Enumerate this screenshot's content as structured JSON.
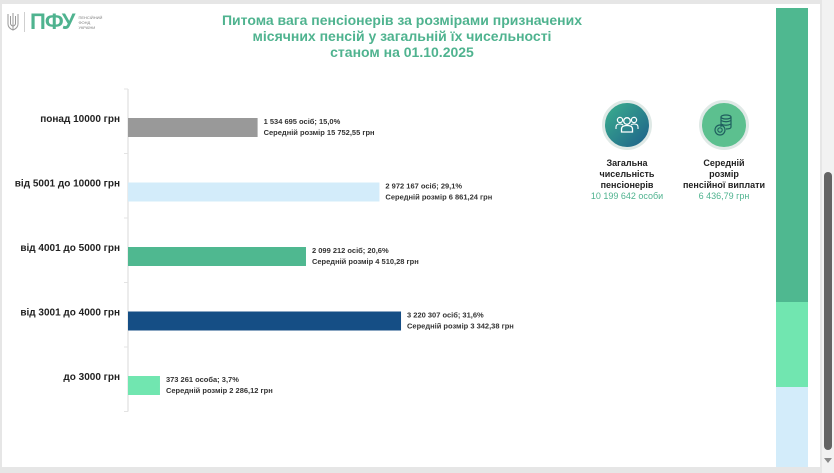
{
  "logo": {
    "text": "ПФУ",
    "subtitle_lines": [
      "Пенсійний",
      "фонд",
      "України"
    ]
  },
  "title_lines": [
    "Питома вага пенсіонерів за розмірами призначених",
    "місячних пенсій у загальній їх чисельності",
    "станом на 01.10.2025"
  ],
  "chart_data": {
    "type": "bar",
    "orientation": "horizontal",
    "title": "Питома вага пенсіонерів за розмірами призначених місячних пенсій у загальній їх чисельності станом на 01.10.2025",
    "xlabel": "",
    "ylabel": "",
    "xlim": [
      0,
      35
    ],
    "grid": false,
    "categories": [
      "понад 10000 грн",
      "від 5001 до 10000 грн",
      "від 4001 до 5000 грн",
      "від 3001 до 4000 грн",
      "до 3000 грн"
    ],
    "values": [
      15.0,
      29.1,
      20.6,
      31.6,
      3.7
    ],
    "unit": "%",
    "colors": [
      "#999999",
      "#d3ecfa",
      "#4fb890",
      "#154e85",
      "#71e6b0"
    ],
    "data_labels": [
      [
        "1 534 695 осіб;  15,0%",
        "Середній розмір 15 752,55 грн"
      ],
      [
        "2 972 167 осіб; 29,1%",
        "Середній розмір 6 861,24 грн"
      ],
      [
        "2 099 212 осіб; 20,6%",
        "Середній розмір 4 510,28 грн"
      ],
      [
        "3 220 307 осіб; 31,6%",
        "Середній розмір 3 342,38 грн"
      ],
      [
        "373 261 особа; 3,7%",
        "Середній розмір 2 286,12 грн"
      ]
    ]
  },
  "stats": [
    {
      "icon": "people-icon",
      "label_lines": [
        "Загальна",
        "чисельність",
        "пенсіонерів"
      ],
      "value": "10 199 642 особи",
      "icon_color": "#2a8a8a"
    },
    {
      "icon": "coins-icon",
      "label_lines": [
        "Середній",
        "розмір",
        "пенсійної виплати"
      ],
      "value": "6 436,79 грн",
      "icon_color": "#5cc08f"
    }
  ],
  "side_bar": {
    "segments": [
      {
        "fraction": 0.64,
        "color": "#4fb890"
      },
      {
        "fraction": 0.185,
        "color": "#71e6b0"
      },
      {
        "fraction": 0.175,
        "color": "#d3ecfa"
      }
    ]
  },
  "accent_color": "#4fb38f"
}
